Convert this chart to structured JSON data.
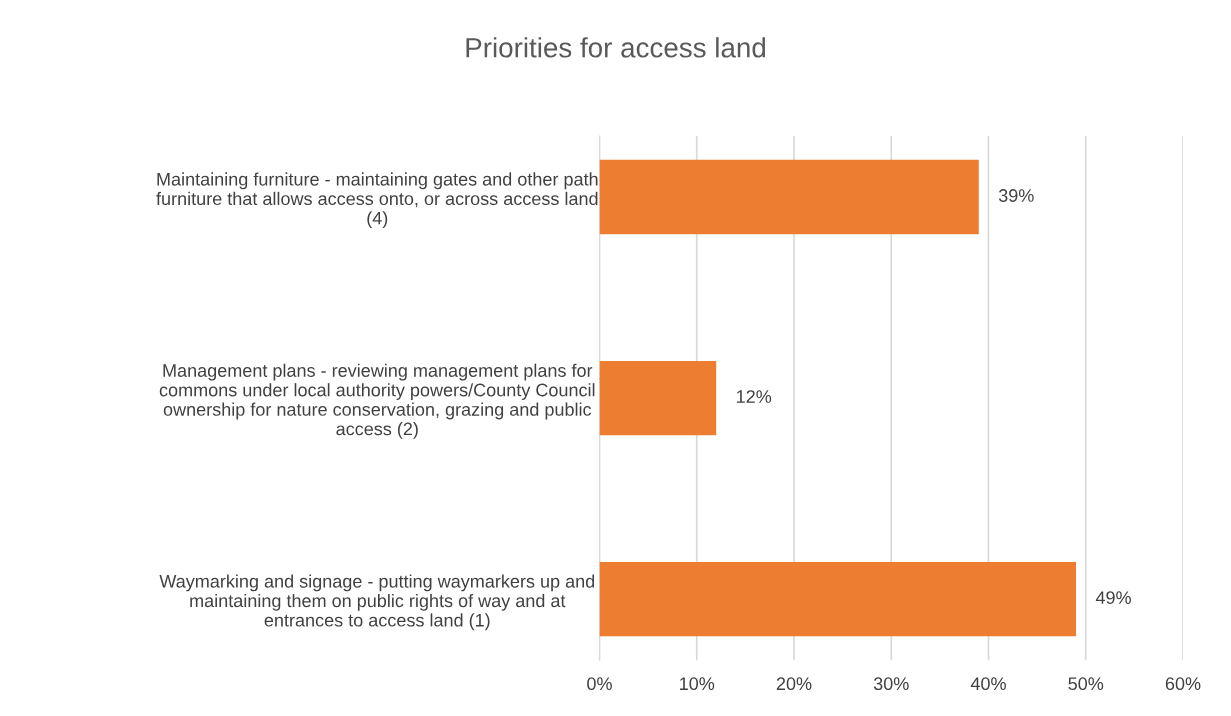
{
  "chart_data": {
    "type": "bar",
    "orientation": "horizontal",
    "title": "Priorities for access land",
    "categories": [
      "Maintaining furniture - maintaining gates and other path\nfurniture that allows access onto, or across access land\n(4)",
      "Management plans - reviewing management plans for\ncommons under local authority powers/County Council\nownership for nature conservation, grazing and public\naccess (2)",
      "Waymarking and signage - putting waymarkers up and\nmaintaining them on public rights of way and at\nentrances to access land (1)"
    ],
    "values": [
      39,
      12,
      49
    ],
    "value_labels": [
      "39%",
      "12%",
      "49%"
    ],
    "color": "#ed7d31",
    "xlim": [
      0,
      60
    ],
    "xticks": [
      {
        "value": 0,
        "label": "0%"
      },
      {
        "value": 10,
        "label": "10%"
      },
      {
        "value": 20,
        "label": "20%"
      },
      {
        "value": 30,
        "label": "30%"
      },
      {
        "value": 40,
        "label": "40%"
      },
      {
        "value": 50,
        "label": "50%"
      },
      {
        "value": 60,
        "label": "60%"
      }
    ],
    "grid": "x",
    "legend": false
  }
}
